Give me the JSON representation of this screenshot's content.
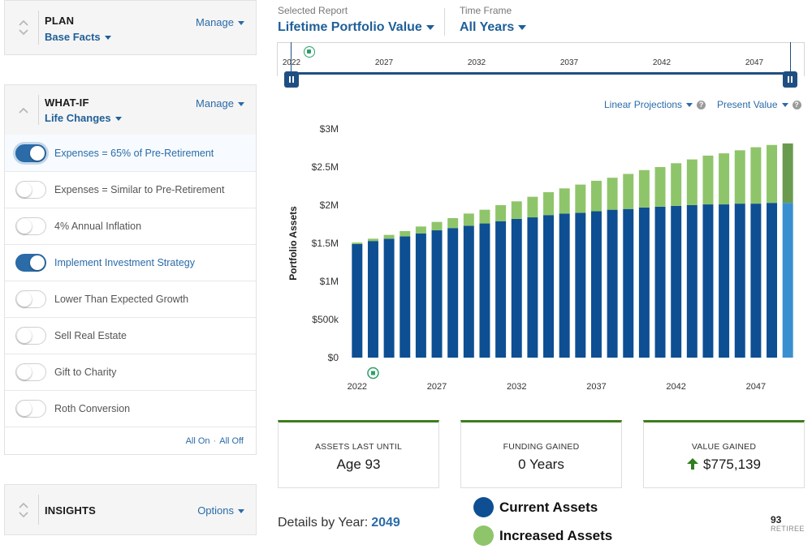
{
  "plan": {
    "title": "PLAN",
    "subtitle": "Base Facts",
    "manage": "Manage"
  },
  "whatif": {
    "title": "WHAT-IF",
    "subtitle": "Life Changes",
    "manage": "Manage",
    "items": [
      {
        "label": "Expenses = 65% of Pre-Retirement",
        "on": true
      },
      {
        "label": "Expenses = Similar to Pre-Retirement",
        "on": false
      },
      {
        "label": "4% Annual Inflation",
        "on": false
      },
      {
        "label": "Implement Investment Strategy",
        "on": true
      },
      {
        "label": "Lower Than Expected Growth",
        "on": false
      },
      {
        "label": "Sell Real Estate",
        "on": false
      },
      {
        "label": "Gift to Charity",
        "on": false
      },
      {
        "label": "Roth Conversion",
        "on": false
      }
    ],
    "all_on": "All On",
    "separator": "·",
    "all_off": "All Off"
  },
  "insights": {
    "title": "INSIGHTS",
    "options": "Options"
  },
  "report": {
    "label": "Selected Report",
    "value": "Lifetime Portfolio Value"
  },
  "timeframe": {
    "label": "Time Frame",
    "value": "All Years"
  },
  "timeline": {
    "years": [
      "2022",
      "2027",
      "2032",
      "2037",
      "2042",
      "2047"
    ]
  },
  "controls": {
    "projection": "Linear Projections",
    "value_mode": "Present Value",
    "help": "?"
  },
  "colors": {
    "current": "#0d4f92",
    "increased": "#8fc56a",
    "current_highlight": "#3a8fd0",
    "increased_highlight": "#6a9a4e",
    "accent": "#2a6ba8"
  },
  "chart_data": {
    "type": "bar",
    "stacked": true,
    "ylabel": "Portfolio Assets",
    "ylim": [
      0,
      3000000
    ],
    "yticks": [
      {
        "value": 0,
        "label": "$0"
      },
      {
        "value": 500000,
        "label": "$500k"
      },
      {
        "value": 1000000,
        "label": "$1M"
      },
      {
        "value": 1500000,
        "label": "$1.5M"
      },
      {
        "value": 2000000,
        "label": "$2M"
      },
      {
        "value": 2500000,
        "label": "$2.5M"
      },
      {
        "value": 3000000,
        "label": "$3M"
      }
    ],
    "categories": [
      "2022",
      "2023",
      "2024",
      "2025",
      "2026",
      "2027",
      "2028",
      "2029",
      "2030",
      "2031",
      "2032",
      "2033",
      "2034",
      "2035",
      "2036",
      "2037",
      "2038",
      "2039",
      "2040",
      "2041",
      "2042",
      "2043",
      "2044",
      "2045",
      "2046",
      "2047",
      "2048",
      "2049"
    ],
    "xtick_labels": [
      "2022",
      "2027",
      "2032",
      "2037",
      "2042",
      "2047"
    ],
    "highlight_category": "2049",
    "series": [
      {
        "name": "Current Assets",
        "values": [
          1490000,
          1530000,
          1560000,
          1590000,
          1630000,
          1670000,
          1700000,
          1730000,
          1760000,
          1790000,
          1820000,
          1840000,
          1870000,
          1890000,
          1900000,
          1920000,
          1940000,
          1950000,
          1970000,
          1980000,
          1990000,
          2000000,
          2010000,
          2010000,
          2020000,
          2020000,
          2030000,
          2030000
        ]
      },
      {
        "name": "Increased Assets",
        "values": [
          20000,
          30000,
          50000,
          70000,
          90000,
          110000,
          130000,
          160000,
          180000,
          210000,
          230000,
          270000,
          300000,
          330000,
          370000,
          400000,
          420000,
          460000,
          490000,
          520000,
          560000,
          600000,
          640000,
          670000,
          700000,
          740000,
          760000,
          780000
        ]
      }
    ],
    "annotation": {
      "marker_category": "2023"
    }
  },
  "cards": [
    {
      "label": "ASSETS LAST UNTIL",
      "value": "Age 93"
    },
    {
      "label": "FUNDING GAINED",
      "value": "0 Years"
    },
    {
      "label": "VALUE GAINED",
      "value": "$775,139"
    }
  ],
  "details": {
    "label": "Details by Year:",
    "year": "2049"
  },
  "legend": {
    "current": "Current Assets",
    "increased": "Increased Assets"
  },
  "retiree": {
    "age": "93",
    "label": "RETIREE"
  }
}
